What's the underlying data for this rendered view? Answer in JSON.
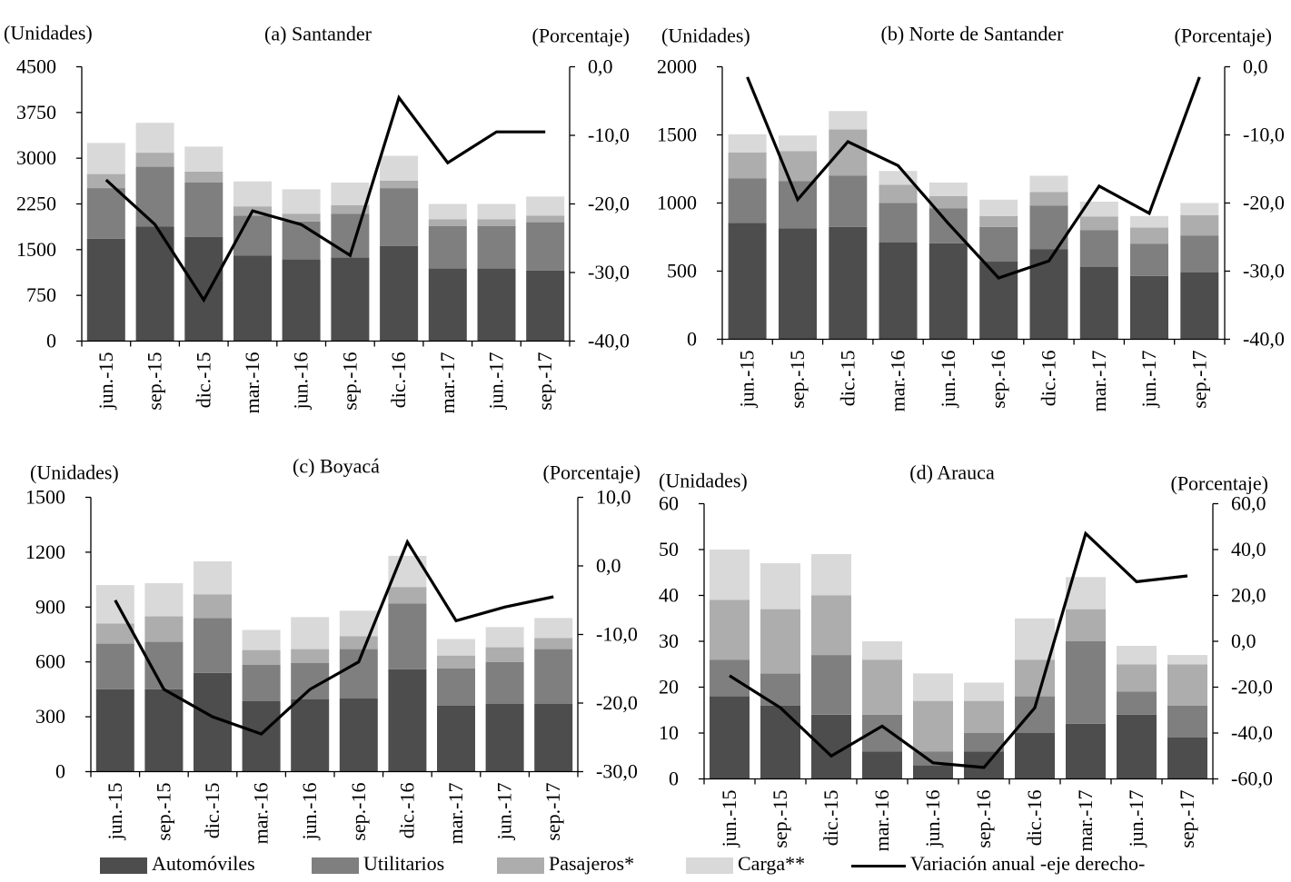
{
  "colors": {
    "automoviles": "#4d4d4d",
    "utilitarios": "#7f7f7f",
    "pasajeros": "#adadad",
    "carga": "#d9d9d9",
    "variacion": "#000000"
  },
  "legend": {
    "automoviles": "Automóviles",
    "utilitarios": "Utilitarios",
    "pasajeros": "Pasajeros*",
    "carga": "Carga**",
    "variacion": "Variación anual -eje derecho-"
  },
  "chart_data": [
    {
      "type": "bar",
      "title": "(a) Santander",
      "left_axis_label": "(Unidades)",
      "right_axis_label": "(Porcentaje)",
      "categories": [
        "jun.-15",
        "sep.-15",
        "dic.-15",
        "mar.-16",
        "jun.-16",
        "sep.-16",
        "dic.-16",
        "mar.-17",
        "jun.-17",
        "sep.-17"
      ],
      "ylim": [
        0,
        4500
      ],
      "yticks": [
        "0",
        "750",
        "1500",
        "2250",
        "3000",
        "3750",
        "4500"
      ],
      "y2lim": [
        -40,
        0
      ],
      "y2ticks": [
        "-40,0",
        "-30,0",
        "-20,0",
        "-10,0",
        "0,0"
      ],
      "stacked": true,
      "series": [
        {
          "name": "Automóviles",
          "values": [
            1680,
            1880,
            1710,
            1400,
            1340,
            1370,
            1560,
            1190,
            1190,
            1160
          ]
        },
        {
          "name": "Utilitarios",
          "values": [
            830,
            980,
            890,
            660,
            620,
            720,
            950,
            700,
            700,
            790
          ]
        },
        {
          "name": "Pasajeros*",
          "values": [
            230,
            230,
            180,
            150,
            130,
            140,
            120,
            110,
            110,
            110
          ]
        },
        {
          "name": "Carga**",
          "values": [
            510,
            490,
            410,
            410,
            400,
            370,
            410,
            250,
            250,
            310
          ]
        }
      ],
      "line": {
        "name": "Variación anual -eje derecho-",
        "values": [
          -16.5,
          -23,
          -34,
          -21,
          -23,
          -27.5,
          -4.5,
          -14,
          -9.5,
          -9.5
        ]
      }
    },
    {
      "type": "bar",
      "title": "(b) Norte de Santander",
      "left_axis_label": "(Unidades)",
      "right_axis_label": "(Porcentaje)",
      "categories": [
        "jun.-15",
        "sep.-15",
        "dic.-15",
        "mar.-16",
        "jun.-16",
        "sep.-16",
        "dic.-16",
        "mar.-17",
        "jun.-17",
        "sep.-17"
      ],
      "ylim": [
        0,
        2000
      ],
      "yticks": [
        "0",
        "500",
        "1000",
        "1500",
        "2000"
      ],
      "y2lim": [
        -40,
        0
      ],
      "y2ticks": [
        "-40,0",
        "-30,0",
        "-20,0",
        "-10,0",
        "0,0"
      ],
      "stacked": true,
      "series": [
        {
          "name": "Automóviles",
          "values": [
            855,
            815,
            825,
            710,
            705,
            570,
            660,
            530,
            465,
            490
          ]
        },
        {
          "name": "Utilitarios",
          "values": [
            325,
            345,
            375,
            290,
            255,
            255,
            320,
            270,
            235,
            270
          ]
        },
        {
          "name": "Pasajeros*",
          "values": [
            190,
            220,
            340,
            135,
            90,
            80,
            100,
            100,
            120,
            150
          ]
        },
        {
          "name": "Carga**",
          "values": [
            135,
            115,
            135,
            100,
            100,
            120,
            120,
            110,
            85,
            90
          ]
        }
      ],
      "line": {
        "name": "Variación anual -eje derecho-",
        "values": [
          -1.5,
          -19.5,
          -11,
          -14.5,
          -23,
          -31,
          -28.5,
          -17.5,
          -21.5,
          -1.5
        ]
      }
    },
    {
      "type": "bar",
      "title": "(c) Boyacá",
      "left_axis_label": "(Unidades)",
      "right_axis_label": "(Porcentaje)",
      "categories": [
        "jun.-15",
        "sep.-15",
        "dic.-15",
        "mar.-16",
        "jun.-16",
        "sep.-16",
        "dic.-16",
        "mar.-17",
        "jun.-17",
        "sep.-17"
      ],
      "ylim": [
        0,
        1500
      ],
      "yticks": [
        "0",
        "300",
        "600",
        "900",
        "1200",
        "1500"
      ],
      "y2lim": [
        -30,
        10
      ],
      "y2ticks": [
        "-30,0",
        "-20,0",
        "-10,0",
        "0,0",
        "10,0"
      ],
      "stacked": true,
      "series": [
        {
          "name": "Automóviles",
          "values": [
            450,
            450,
            540,
            385,
            395,
            400,
            560,
            360,
            370,
            370
          ]
        },
        {
          "name": "Utilitarios",
          "values": [
            250,
            260,
            300,
            200,
            200,
            270,
            360,
            205,
            230,
            300
          ]
        },
        {
          "name": "Pasajeros*",
          "values": [
            110,
            140,
            130,
            80,
            75,
            70,
            90,
            70,
            80,
            60
          ]
        },
        {
          "name": "Carga**",
          "values": [
            210,
            180,
            180,
            110,
            175,
            140,
            170,
            90,
            110,
            110
          ]
        }
      ],
      "line": {
        "name": "Variación anual -eje derecho-",
        "values": [
          -5,
          -18,
          -22,
          -24.5,
          -18,
          -14,
          3.5,
          -8,
          -6,
          -4.5
        ]
      }
    },
    {
      "type": "bar",
      "title": "(d) Arauca",
      "left_axis_label": "(Unidades)",
      "right_axis_label": "(Porcentaje)",
      "categories": [
        "jun.-15",
        "sep.-15",
        "dic.-15",
        "mar.-16",
        "jun.-16",
        "sep.-16",
        "dic.-16",
        "mar.-17",
        "jun.-17",
        "sep.-17"
      ],
      "ylim": [
        0,
        60
      ],
      "yticks": [
        "0",
        "10",
        "20",
        "30",
        "40",
        "50",
        "60"
      ],
      "y2lim": [
        -60,
        60
      ],
      "y2ticks": [
        "-60,0",
        "-40,0",
        "-20,0",
        "0,0",
        "20,0",
        "40,0",
        "60,0"
      ],
      "stacked": true,
      "series": [
        {
          "name": "Automóviles",
          "values": [
            18,
            16,
            14,
            6,
            3,
            6,
            10,
            12,
            14,
            9
          ]
        },
        {
          "name": "Utilitarios",
          "values": [
            8,
            7,
            13,
            8,
            3,
            4,
            8,
            18,
            5,
            7
          ]
        },
        {
          "name": "Pasajeros*",
          "values": [
            13,
            14,
            13,
            12,
            11,
            7,
            8,
            7,
            6,
            9
          ]
        },
        {
          "name": "Carga**",
          "values": [
            11,
            10,
            9,
            4,
            6,
            4,
            9,
            7,
            4,
            2
          ]
        }
      ],
      "line": {
        "name": "Variación anual -eje derecho-",
        "values": [
          -15,
          -29,
          -50,
          -37,
          -53,
          -55,
          -29,
          47,
          26,
          28.5
        ]
      }
    }
  ]
}
